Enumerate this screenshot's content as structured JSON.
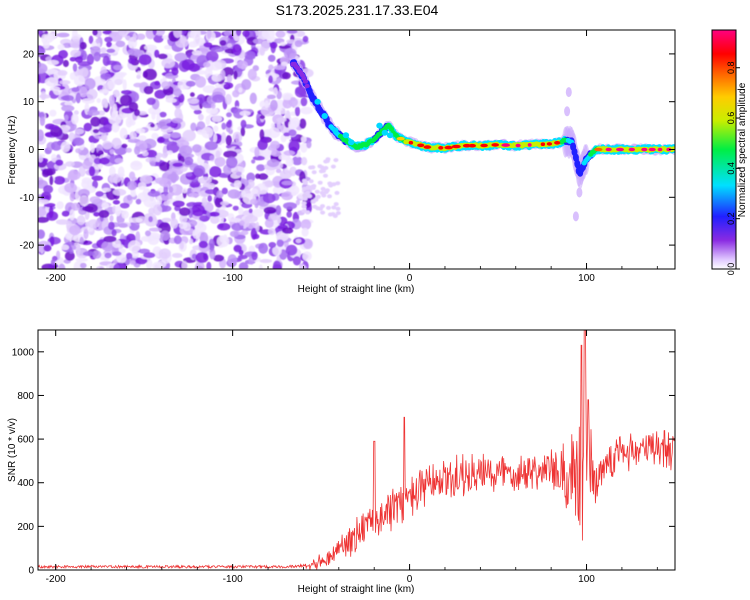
{
  "title": "S173.2025.231.17.33.E04",
  "chart_data": [
    {
      "type": "heatmap",
      "title": "S173.2025.231.17.33.E04",
      "xlabel": "Height of straight line (km)",
      "ylabel": "Frequency (Hz)",
      "xlim": [
        -210,
        150
      ],
      "ylim": [
        -25,
        25
      ],
      "xticks": [
        -200,
        -100,
        0,
        100
      ],
      "yticks": [
        -20,
        -10,
        0,
        10,
        20
      ],
      "xtick_labels": [
        "-200",
        "-100",
        "0",
        "100"
      ],
      "ytick_labels": [
        "-20",
        "-10",
        "0",
        "10",
        "20"
      ],
      "colorbar": {
        "label": "Normalized spectral amplitude",
        "range": [
          0,
          0.95
        ],
        "ticks": [
          0.0,
          0.2,
          0.4,
          0.6,
          0.8
        ],
        "tick_labels": [
          "0.0",
          "0.2",
          "0.4",
          "0.6",
          "0.8"
        ],
        "colormap": "rainbow (white-violet-blue-cyan-green-yellow-orange-red-magenta)"
      },
      "noise_region_x": [
        -210,
        -60
      ],
      "ridge": {
        "x": [
          -65,
          -60,
          -55,
          -50,
          -45,
          -40,
          -35,
          -30,
          -25,
          -20,
          -15,
          -12,
          -8,
          -4,
          0,
          10,
          20,
          30,
          40,
          50,
          60,
          70,
          80,
          85,
          88,
          92,
          96,
          100,
          105,
          110,
          120,
          130,
          140,
          150
        ],
        "freq": [
          18,
          15,
          11,
          8,
          5,
          3,
          1.5,
          0.5,
          1,
          2,
          4,
          5,
          3,
          2,
          1.5,
          0.5,
          0.3,
          0.8,
          0.8,
          1,
          0.8,
          1,
          1.2,
          1.5,
          2,
          1.5,
          -5,
          -2,
          0,
          0,
          0,
          0,
          0,
          0
        ],
        "amplitude": [
          0.15,
          0.15,
          0.2,
          0.2,
          0.3,
          0.5,
          0.6,
          0.7,
          0.65,
          0.6,
          0.55,
          0.6,
          0.6,
          0.7,
          0.8,
          0.85,
          0.8,
          0.8,
          0.8,
          0.85,
          0.9,
          0.85,
          0.85,
          0.8,
          0.6,
          0.3,
          0.2,
          0.4,
          0.7,
          0.85,
          0.9,
          0.9,
          0.9,
          0.9
        ]
      }
    },
    {
      "type": "line",
      "xlabel": "Height of straight line (km)",
      "ylabel": "SNR (10 * v/v)",
      "xlim": [
        -210,
        150
      ],
      "ylim": [
        0,
        1100
      ],
      "xticks": [
        -200,
        -100,
        0,
        100
      ],
      "yticks": [
        0,
        200,
        400,
        600,
        800,
        1000
      ],
      "xtick_labels": [
        "-200",
        "-100",
        "0",
        "100"
      ],
      "ytick_labels": [
        "0",
        "200",
        "400",
        "600",
        "800",
        "1000"
      ],
      "series": [
        {
          "name": "SNR",
          "color": "#ee3333",
          "envelope_x": [
            -210,
            -150,
            -100,
            -70,
            -60,
            -50,
            -45,
            -40,
            -30,
            -20,
            -10,
            0,
            10,
            20,
            30,
            40,
            50,
            60,
            70,
            80,
            85,
            90,
            95,
            98,
            100,
            105,
            110,
            120,
            130,
            140,
            150
          ],
          "envelope_mean": [
            15,
            15,
            15,
            15,
            20,
            40,
            60,
            100,
            160,
            220,
            280,
            330,
            380,
            410,
            430,
            430,
            450,
            450,
            460,
            460,
            420,
            380,
            350,
            500,
            550,
            400,
            500,
            540,
            550,
            560,
            560
          ],
          "envelope_amp": [
            12,
            12,
            12,
            12,
            20,
            40,
            50,
            80,
            100,
            110,
            120,
            120,
            120,
            120,
            120,
            120,
            110,
            110,
            110,
            110,
            150,
            250,
            350,
            450,
            300,
            150,
            120,
            110,
            110,
            110,
            120
          ],
          "peaks": [
            {
              "x": -20,
              "y": 590
            },
            {
              "x": -3,
              "y": 700
            },
            {
              "x": 97,
              "y": 1030
            },
            {
              "x": 99,
              "y": 1100
            },
            {
              "x": 101,
              "y": 780
            }
          ]
        }
      ]
    }
  ]
}
